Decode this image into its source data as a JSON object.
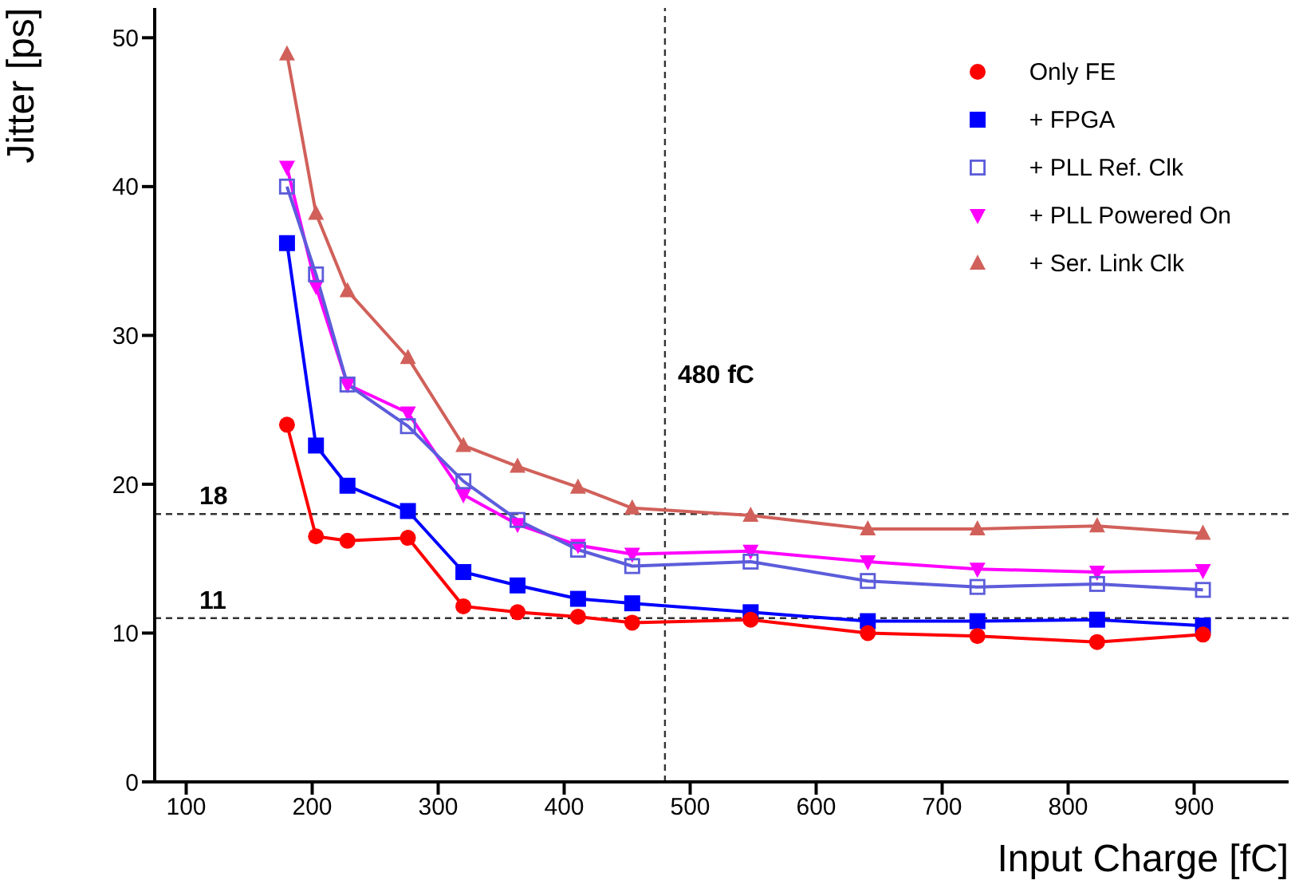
{
  "chart_data": {
    "type": "line",
    "xlabel": "Input Charge [fC]",
    "ylabel": "Jitter [ps]",
    "x": [
      180,
      203,
      228,
      276,
      320,
      363,
      411,
      454,
      548,
      641,
      728,
      823,
      907
    ],
    "xlim": [
      75,
      975
    ],
    "xticks": [
      100,
      200,
      300,
      400,
      500,
      600,
      700,
      800,
      900
    ],
    "ylim": [
      0,
      52
    ],
    "yticks": [
      0,
      10,
      20,
      30,
      40,
      50
    ],
    "grid": false,
    "legend": "top right",
    "line_style": "solid",
    "series": [
      {
        "name": "Only FE",
        "color": "#ff0000",
        "marker": "circle",
        "values": [
          24.0,
          16.5,
          16.2,
          16.4,
          11.8,
          11.4,
          11.1,
          10.7,
          10.9,
          10.0,
          9.8,
          9.4,
          9.9
        ]
      },
      {
        "name": "+ FPGA",
        "color": "#0000ff",
        "marker": "square",
        "values": [
          36.2,
          22.6,
          19.9,
          18.2,
          14.1,
          13.2,
          12.3,
          12.0,
          11.4,
          10.8,
          10.8,
          10.9,
          10.5
        ]
      },
      {
        "name": "+ PLL Ref. Clk",
        "color": "#5c5cdb",
        "marker": "square-open",
        "values": [
          40.0,
          34.1,
          26.7,
          23.9,
          20.2,
          17.6,
          15.6,
          14.5,
          14.8,
          13.5,
          13.1,
          13.3,
          12.9
        ]
      },
      {
        "name": "+ PLL Powered On",
        "color": "#ff00ff",
        "marker": "triangle-down",
        "values": [
          41.3,
          33.3,
          26.7,
          24.8,
          19.3,
          17.3,
          15.9,
          15.3,
          15.5,
          14.8,
          14.3,
          14.1,
          14.2
        ]
      },
      {
        "name": "+ Ser. Link Clk",
        "color": "#d1605a",
        "marker": "triangle",
        "values": [
          48.9,
          38.2,
          33.0,
          28.5,
          22.6,
          21.2,
          19.8,
          18.4,
          17.9,
          17.0,
          17.0,
          17.2,
          16.7
        ]
      }
    ],
    "ref_lines": [
      {
        "axis": "y",
        "value": 18,
        "label": "18",
        "line_style": "dashed"
      },
      {
        "axis": "y",
        "value": 11,
        "label": "11",
        "line_style": "dashed"
      },
      {
        "axis": "x",
        "value": 480,
        "label": "480 fC",
        "line_style": "dashed"
      }
    ]
  }
}
